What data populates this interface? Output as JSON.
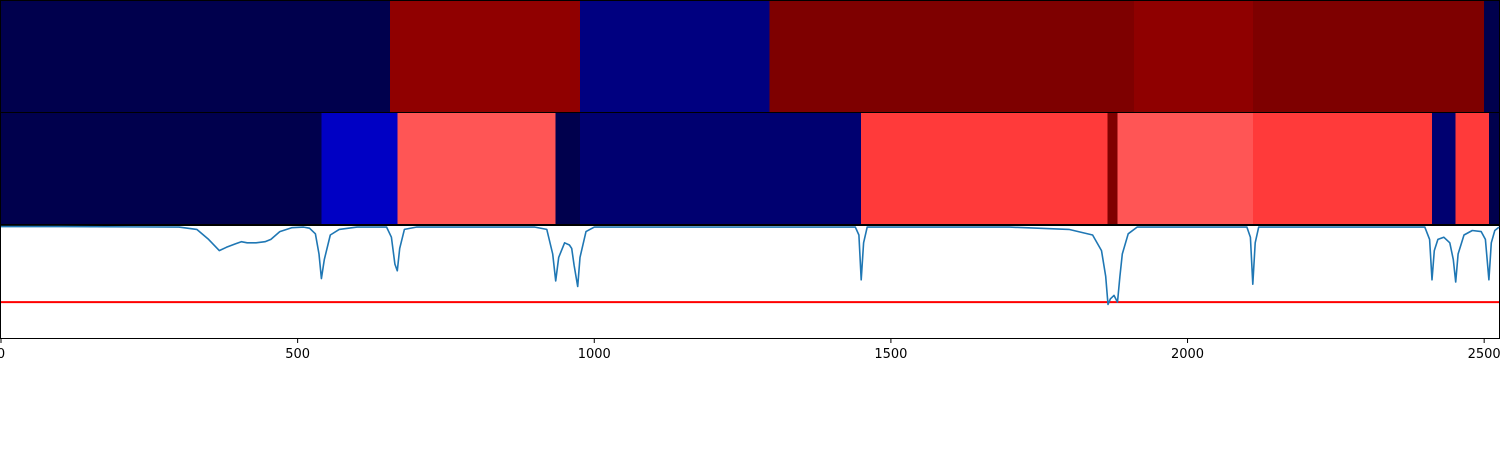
{
  "chart_data": {
    "type": "heatmap",
    "xlim": [
      0,
      2525
    ],
    "xticks": [
      0,
      500,
      1000,
      1500,
      2000,
      2500
    ],
    "xtick_labels": [
      "0",
      "500",
      "1000",
      "1500",
      "2000",
      "2500"
    ],
    "grid": false,
    "legend": "none",
    "bands": [
      {
        "name": "",
        "segments": [
          {
            "start": 0,
            "end": 656,
            "color": "#00004d"
          },
          {
            "start": 656,
            "end": 976,
            "color": "#900000"
          },
          {
            "start": 976,
            "end": 1295,
            "color": "#000080"
          },
          {
            "start": 1295,
            "end": 1910,
            "color": "#7e0000"
          },
          {
            "start": 1910,
            "end": 2110,
            "color": "#8f0000"
          },
          {
            "start": 2110,
            "end": 2500,
            "color": "#7e0000"
          },
          {
            "start": 2500,
            "end": 2525,
            "color": "#00004d"
          }
        ]
      },
      {
        "name": "",
        "segments": [
          {
            "start": 0,
            "end": 540,
            "color": "#00004d"
          },
          {
            "start": 540,
            "end": 668,
            "color": "#0000c4"
          },
          {
            "start": 668,
            "end": 935,
            "color": "#ff5555"
          },
          {
            "start": 935,
            "end": 976,
            "color": "#00004d"
          },
          {
            "start": 976,
            "end": 1450,
            "color": "#000070"
          },
          {
            "start": 1450,
            "end": 1865,
            "color": "#ff3a3a"
          },
          {
            "start": 1865,
            "end": 1882,
            "color": "#800000"
          },
          {
            "start": 1882,
            "end": 2110,
            "color": "#ff5555"
          },
          {
            "start": 2110,
            "end": 2412,
            "color": "#ff3a3a"
          },
          {
            "start": 2412,
            "end": 2452,
            "color": "#000070"
          },
          {
            "start": 2452,
            "end": 2508,
            "color": "#ff3a3a"
          },
          {
            "start": 2508,
            "end": 2525,
            "color": "#00004d"
          }
        ]
      }
    ],
    "line_series": {
      "name": "",
      "color": "#1f77b4",
      "ylim": [
        0,
        1
      ],
      "points": [
        [
          0,
          0.995
        ],
        [
          100,
          0.995
        ],
        [
          300,
          0.99
        ],
        [
          330,
          0.97
        ],
        [
          350,
          0.88
        ],
        [
          368,
          0.78
        ],
        [
          380,
          0.81
        ],
        [
          395,
          0.84
        ],
        [
          405,
          0.86
        ],
        [
          415,
          0.85
        ],
        [
          430,
          0.85
        ],
        [
          445,
          0.86
        ],
        [
          455,
          0.88
        ],
        [
          470,
          0.95
        ],
        [
          490,
          0.985
        ],
        [
          510,
          0.99
        ],
        [
          520,
          0.98
        ],
        [
          530,
          0.93
        ],
        [
          536,
          0.75
        ],
        [
          540,
          0.53
        ],
        [
          545,
          0.7
        ],
        [
          555,
          0.92
        ],
        [
          570,
          0.97
        ],
        [
          600,
          0.99
        ],
        [
          650,
          0.99
        ],
        [
          658,
          0.9
        ],
        [
          664,
          0.66
        ],
        [
          668,
          0.6
        ],
        [
          672,
          0.8
        ],
        [
          680,
          0.97
        ],
        [
          700,
          0.99
        ],
        [
          900,
          0.99
        ],
        [
          920,
          0.97
        ],
        [
          930,
          0.75
        ],
        [
          935,
          0.51
        ],
        [
          940,
          0.72
        ],
        [
          950,
          0.85
        ],
        [
          958,
          0.83
        ],
        [
          962,
          0.8
        ],
        [
          966,
          0.65
        ],
        [
          972,
          0.46
        ],
        [
          976,
          0.72
        ],
        [
          986,
          0.95
        ],
        [
          1000,
          0.99
        ],
        [
          1440,
          0.99
        ],
        [
          1446,
          0.92
        ],
        [
          1450,
          0.52
        ],
        [
          1454,
          0.85
        ],
        [
          1460,
          0.99
        ],
        [
          1700,
          0.99
        ],
        [
          1800,
          0.97
        ],
        [
          1840,
          0.92
        ],
        [
          1855,
          0.78
        ],
        [
          1862,
          0.55
        ],
        [
          1866,
          0.3
        ],
        [
          1870,
          0.35
        ],
        [
          1876,
          0.38
        ],
        [
          1882,
          0.32
        ],
        [
          1886,
          0.55
        ],
        [
          1890,
          0.75
        ],
        [
          1900,
          0.93
        ],
        [
          1915,
          0.99
        ],
        [
          2100,
          0.99
        ],
        [
          2106,
          0.9
        ],
        [
          2110,
          0.48
        ],
        [
          2114,
          0.85
        ],
        [
          2120,
          0.99
        ],
        [
          2400,
          0.99
        ],
        [
          2408,
          0.88
        ],
        [
          2412,
          0.52
        ],
        [
          2416,
          0.78
        ],
        [
          2422,
          0.88
        ],
        [
          2432,
          0.9
        ],
        [
          2442,
          0.85
        ],
        [
          2448,
          0.7
        ],
        [
          2452,
          0.5
        ],
        [
          2456,
          0.75
        ],
        [
          2466,
          0.92
        ],
        [
          2480,
          0.96
        ],
        [
          2495,
          0.95
        ],
        [
          2502,
          0.88
        ],
        [
          2508,
          0.52
        ],
        [
          2512,
          0.85
        ],
        [
          2518,
          0.96
        ],
        [
          2525,
          0.99
        ]
      ]
    },
    "hline": {
      "y": 0.32,
      "color": "#ff0000"
    }
  }
}
